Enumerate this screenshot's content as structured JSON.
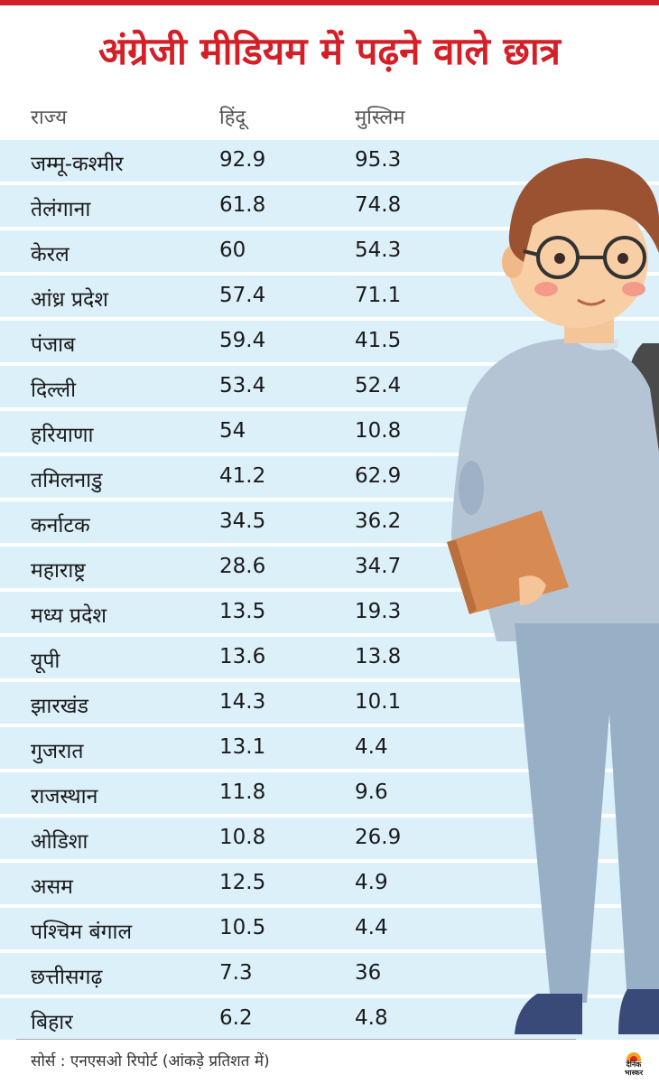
{
  "title": "अंग्रेजी मीडियम में पढ़ने वाले छात्र",
  "header": {
    "state": "राज्य",
    "hindu": "हिंदू",
    "muslim": "मुस्लिम"
  },
  "chart_data": {
    "type": "table",
    "columns": [
      "राज्य",
      "हिंदू",
      "मुस्लिम"
    ],
    "rows": [
      {
        "state": "जम्मू-कश्मीर",
        "hindu": "92.9",
        "muslim": "95.3"
      },
      {
        "state": "तेलंगाना",
        "hindu": "61.8",
        "muslim": "74.8"
      },
      {
        "state": "केरल",
        "hindu": "60",
        "muslim": "54.3"
      },
      {
        "state": "आंध्र प्रदेश",
        "hindu": "57.4",
        "muslim": "71.1"
      },
      {
        "state": "पंजाब",
        "hindu": "59.4",
        "muslim": "41.5"
      },
      {
        "state": "दिल्ली",
        "hindu": "53.4",
        "muslim": "52.4"
      },
      {
        "state": "हरियाणा",
        "hindu": "54",
        "muslim": "10.8"
      },
      {
        "state": "तमिलनाडु",
        "hindu": "41.2",
        "muslim": "62.9"
      },
      {
        "state": "कर्नाटक",
        "hindu": "34.5",
        "muslim": "36.2"
      },
      {
        "state": "महाराष्ट्र",
        "hindu": "28.6",
        "muslim": "34.7"
      },
      {
        "state": "मध्य प्रदेश",
        "hindu": "13.5",
        "muslim": "19.3"
      },
      {
        "state": "यूपी",
        "hindu": "13.6",
        "muslim": "13.8"
      },
      {
        "state": "झारखंड",
        "hindu": "14.3",
        "muslim": "10.1"
      },
      {
        "state": "गुजरात",
        "hindu": "13.1",
        "muslim": "4.4"
      },
      {
        "state": "राजस्थान",
        "hindu": "11.8",
        "muslim": "9.6"
      },
      {
        "state": "ओडिशा",
        "hindu": "10.8",
        "muslim": "26.9"
      },
      {
        "state": "असम",
        "hindu": "12.5",
        "muslim": "4.9"
      },
      {
        "state": "पश्चिम बंगाल",
        "hindu": "10.5",
        "muslim": "4.4"
      },
      {
        "state": "छत्तीसगढ़",
        "hindu": "7.3",
        "muslim": "36"
      },
      {
        "state": "बिहार",
        "hindu": "6.2",
        "muslim": "4.8"
      }
    ]
  },
  "footer": {
    "source": "सोर्स : एनएसओ रिपोर्ट  (आंकड़े प्रतिशत में)"
  },
  "logo": {
    "line1": "दैनिक",
    "line2": "भास्कर"
  },
  "illustration": {
    "icon": "student-with-book-icon"
  },
  "colors": {
    "title": "#d41f27",
    "row_bg": "#dcf0fa",
    "sweater": "#b4c4d4",
    "trousers": "#98b0c6",
    "book": "#d78a52",
    "hair": "#9a5230"
  }
}
